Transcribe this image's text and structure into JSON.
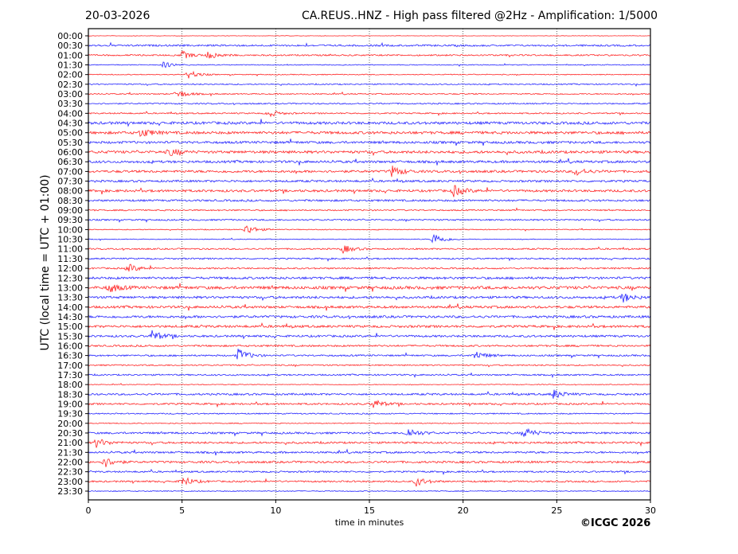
{
  "header": {
    "date": "20-03-2026",
    "title": "CA.REUS..HNZ - High pass filtered @2Hz - Amplification: 1/5000"
  },
  "footer": {
    "copyright": "©ICGC 2026"
  },
  "chart_data": {
    "type": "line",
    "subtype": "helicorder",
    "title": "CA.REUS..HNZ - High pass filtered @2Hz - Amplification: 1/5000",
    "xlabel": "time in minutes",
    "ylabel": "UTC (local time = UTC + 01:00)",
    "xlim": [
      0,
      30
    ],
    "x_ticks": [
      "0",
      "5",
      "10",
      "15",
      "20",
      "25",
      "30"
    ],
    "grid": "vertical dotted at every 5 minutes",
    "colors": [
      "#ff0000",
      "#0000ff"
    ],
    "rows": [
      "00:00",
      "00:30",
      "01:00",
      "01:30",
      "02:00",
      "02:30",
      "03:00",
      "03:30",
      "04:00",
      "04:30",
      "05:00",
      "05:30",
      "06:00",
      "06:30",
      "07:00",
      "07:30",
      "08:00",
      "08:30",
      "09:00",
      "09:30",
      "10:00",
      "10:30",
      "11:00",
      "11:30",
      "12:00",
      "12:30",
      "13:00",
      "13:30",
      "14:00",
      "14:30",
      "15:00",
      "15:30",
      "16:00",
      "16:30",
      "17:00",
      "17:30",
      "18:00",
      "18:30",
      "19:00",
      "19:30",
      "20:00",
      "20:30",
      "21:00",
      "21:30",
      "22:00",
      "22:30",
      "23:00",
      "23:30"
    ],
    "noise_level": [
      0.3,
      1.2,
      1,
      0.6,
      0.6,
      0.8,
      0.8,
      0.9,
      0.9,
      1.8,
      1.8,
      1.6,
      1.8,
      1.6,
      1.6,
      1.4,
      1.6,
      1.3,
      0.9,
      1,
      0.6,
      0.5,
      1,
      1,
      1,
      1.6,
      2,
      1.6,
      1.6,
      1.6,
      1.6,
      1.4,
      1.2,
      1.1,
      0.9,
      1,
      0.5,
      1.3,
      1.2,
      0.8,
      0.6,
      1.3,
      1.3,
      1.3,
      1.4,
      1.1,
      1.1,
      0.6
    ],
    "events": [
      {
        "row": "01:00",
        "minute": 5,
        "amp": 5
      },
      {
        "row": "01:00",
        "minute": 6.4,
        "amp": 5
      },
      {
        "row": "01:30",
        "minute": 4,
        "amp": 4
      },
      {
        "row": "02:00",
        "minute": 5.3,
        "amp": 6
      },
      {
        "row": "03:00",
        "minute": 4.7,
        "amp": 6
      },
      {
        "row": "04:00",
        "minute": 9.6,
        "amp": 5
      },
      {
        "row": "05:00",
        "minute": 2.8,
        "amp": 6
      },
      {
        "row": "06:00",
        "minute": 4.3,
        "amp": 5
      },
      {
        "row": "07:00",
        "minute": 16.2,
        "amp": 7
      },
      {
        "row": "07:00",
        "minute": 26,
        "amp": 5
      },
      {
        "row": "08:00",
        "minute": 19.5,
        "amp": 7
      },
      {
        "row": "10:00",
        "minute": 8.4,
        "amp": 7
      },
      {
        "row": "10:30",
        "minute": 18.4,
        "amp": 9
      },
      {
        "row": "11:00",
        "minute": 13.6,
        "amp": 5
      },
      {
        "row": "12:00",
        "minute": 2.1,
        "amp": 6
      },
      {
        "row": "13:00",
        "minute": 1.1,
        "amp": 6
      },
      {
        "row": "13:30",
        "minute": 28.5,
        "amp": 6
      },
      {
        "row": "15:30",
        "minute": 3.4,
        "amp": 7
      },
      {
        "row": "16:30",
        "minute": 8,
        "amp": 9
      },
      {
        "row": "16:30",
        "minute": 20.6,
        "amp": 6
      },
      {
        "row": "18:30",
        "minute": 24.8,
        "amp": 6
      },
      {
        "row": "19:00",
        "minute": 15.2,
        "amp": 6
      },
      {
        "row": "20:30",
        "minute": 17,
        "amp": 7
      },
      {
        "row": "20:30",
        "minute": 23.3,
        "amp": 7
      },
      {
        "row": "21:00",
        "minute": 0.4,
        "amp": 6
      },
      {
        "row": "22:00",
        "minute": 0.8,
        "amp": 7
      },
      {
        "row": "23:00",
        "minute": 5,
        "amp": 7
      },
      {
        "row": "23:00",
        "minute": 17.5,
        "amp": 6
      }
    ]
  }
}
